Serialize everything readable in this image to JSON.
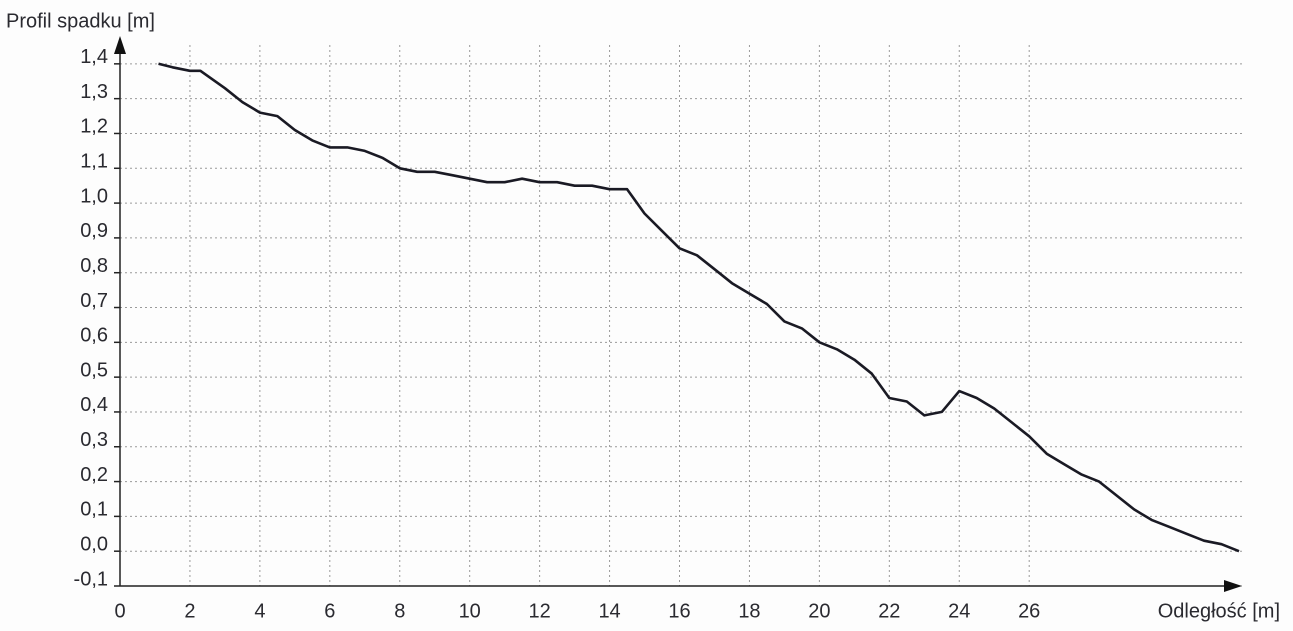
{
  "chart_data": {
    "type": "line",
    "title": "Profil spadku [m]",
    "x_label": "Odległość [m]",
    "color": "#1a1a24",
    "grid": true,
    "x": [
      1.1,
      1.5,
      2,
      2.3,
      3,
      3.5,
      4,
      4.5,
      5,
      5.5,
      6,
      6.5,
      7,
      7.5,
      8,
      8.5,
      9,
      9.5,
      10,
      10.5,
      11,
      11.5,
      12,
      12.5,
      13,
      13.5,
      14,
      14.5,
      15,
      15.5,
      16,
      16.5,
      17,
      17.5,
      18,
      18.5,
      19,
      19.5,
      20,
      20.5,
      21,
      21.5,
      22,
      22.5,
      23,
      23.5,
      24,
      24.5,
      25,
      25.5,
      26,
      26.5,
      27,
      27.5,
      28,
      28.5,
      29,
      29.5,
      30,
      30.5,
      31,
      31.5,
      32
    ],
    "values": [
      1.4,
      1.39,
      1.38,
      1.38,
      1.33,
      1.29,
      1.26,
      1.25,
      1.21,
      1.18,
      1.16,
      1.16,
      1.15,
      1.13,
      1.1,
      1.09,
      1.09,
      1.08,
      1.07,
      1.06,
      1.06,
      1.07,
      1.06,
      1.06,
      1.05,
      1.05,
      1.04,
      1.04,
      0.97,
      0.92,
      0.87,
      0.85,
      0.81,
      0.77,
      0.74,
      0.71,
      0.66,
      0.64,
      0.6,
      0.58,
      0.55,
      0.51,
      0.44,
      0.43,
      0.39,
      0.4,
      0.46,
      0.44,
      0.41,
      0.37,
      0.33,
      0.28,
      0.25,
      0.22,
      0.2,
      0.16,
      0.12,
      0.09,
      0.07,
      0.05,
      0.03,
      0.02,
      0.0
    ],
    "xlim": [
      0,
      32.6
    ],
    "xticks": [
      0,
      2,
      4,
      6,
      8,
      10,
      12,
      14,
      16,
      18,
      20,
      22,
      24,
      26
    ],
    "ylim": [
      -0.1,
      1.48
    ],
    "yticks": [
      {
        "value": -0.1,
        "label": "-0,1"
      },
      {
        "value": 0.0,
        "label": "0,0"
      },
      {
        "value": 0.1,
        "label": "0,1"
      },
      {
        "value": 0.2,
        "label": "0,2"
      },
      {
        "value": 0.3,
        "label": "0,3"
      },
      {
        "value": 0.4,
        "label": "0,4"
      },
      {
        "value": 0.5,
        "label": "0,5"
      },
      {
        "value": 0.6,
        "label": "0,6"
      },
      {
        "value": 0.7,
        "label": "0,7"
      },
      {
        "value": 0.8,
        "label": "0,8"
      },
      {
        "value": 0.9,
        "label": "0,9"
      },
      {
        "value": 1.0,
        "label": "1,0"
      },
      {
        "value": 1.1,
        "label": "1,1"
      },
      {
        "value": 1.2,
        "label": "1,2"
      },
      {
        "value": 1.3,
        "label": "1,3"
      },
      {
        "value": 1.4,
        "label": "1,4"
      }
    ]
  }
}
